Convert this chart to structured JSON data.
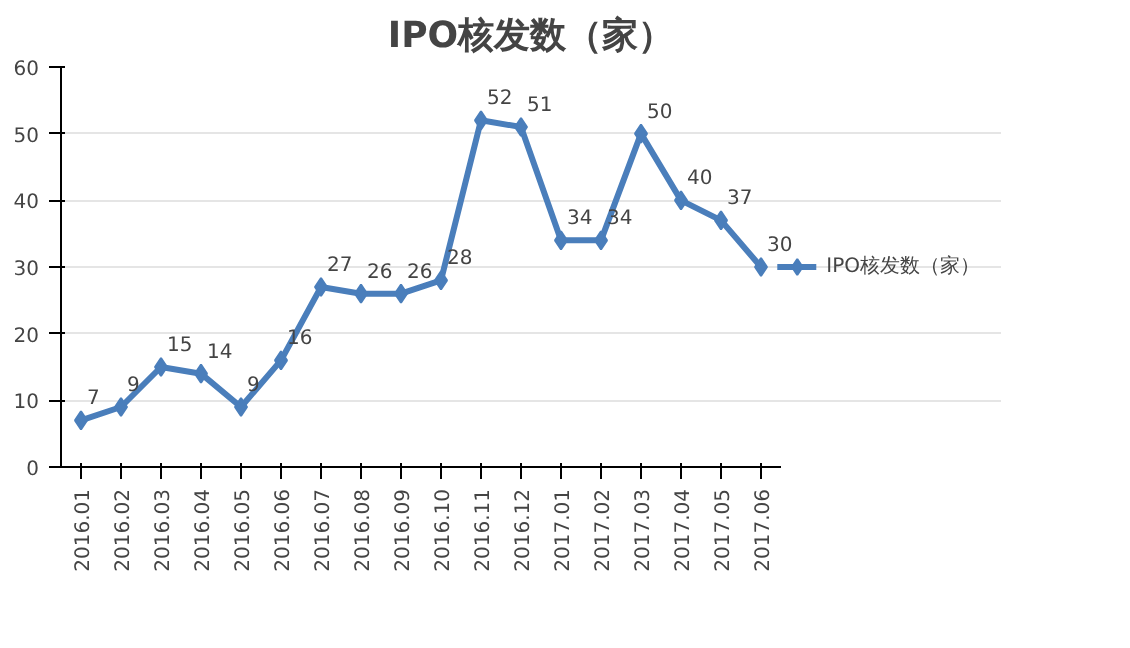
{
  "chart_data": {
    "type": "line",
    "title": "IPO核发数（家）",
    "categories": [
      "2016.01",
      "2016.02",
      "2016.03",
      "2016.04",
      "2016.05",
      "2016.06",
      "2016.07",
      "2016.08",
      "2016.09",
      "2016.10",
      "2016.11",
      "2016.12",
      "2017.01",
      "2017.02",
      "2017.03",
      "2017.04",
      "2017.05",
      "2017.06"
    ],
    "series": [
      {
        "name": "IPO核发数（家）",
        "color": "#4a7ebb",
        "values": [
          7,
          9,
          15,
          14,
          9,
          16,
          27,
          26,
          26,
          28,
          52,
          51,
          34,
          34,
          50,
          40,
          37,
          30
        ]
      }
    ],
    "ylim": [
      0,
      60
    ],
    "yticks": [
      0,
      10,
      20,
      30,
      40,
      50,
      60
    ],
    "grid": "y",
    "legend": "right",
    "marker": "diamond",
    "line_style": "solid",
    "data_labels": true
  }
}
